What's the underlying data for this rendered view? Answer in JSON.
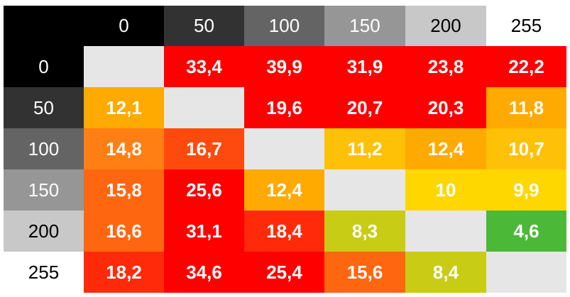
{
  "chart_data": {
    "type": "heatmap",
    "x_labels": [
      "0",
      "50",
      "100",
      "150",
      "200",
      "255"
    ],
    "y_labels": [
      "0",
      "50",
      "100",
      "150",
      "200",
      "255"
    ],
    "header_colors": [
      "#000000",
      "#323232",
      "#646464",
      "#969696",
      "#c8c8c8",
      "#ffffff"
    ],
    "header_text_colors": [
      "#ffffff",
      "#ffffff",
      "#ffffff",
      "#ffffff",
      "#000000",
      "#000000"
    ],
    "values": [
      [
        null,
        "33,4",
        "39,9",
        "31,9",
        "23,8",
        "22,2"
      ],
      [
        "12,1",
        null,
        "19,6",
        "20,7",
        "20,3",
        "11,8"
      ],
      [
        "14,8",
        "16,7",
        null,
        "11,2",
        "12,4",
        "10,7"
      ],
      [
        "15,8",
        "25,6",
        "12,4",
        null,
        "10",
        "9,9"
      ],
      [
        "16,6",
        "31,1",
        "18,4",
        "8,3",
        null,
        "4,6"
      ],
      [
        "18,2",
        "34,6",
        "25,4",
        "15,6",
        "8,4",
        null
      ]
    ],
    "cell_colors": [
      [
        "#e6e6e6",
        "#ff0000",
        "#ff0000",
        "#ff0000",
        "#ff0000",
        "#ff0000"
      ],
      [
        "#ffaa00",
        "#e6e6e6",
        "#ff0000",
        "#ff0000",
        "#ff0000",
        "#ffaa00"
      ],
      [
        "#ff7f14",
        "#ff4a0e",
        "#e6e6e6",
        "#ffc107",
        "#ffaa00",
        "#ffc107"
      ],
      [
        "#ff6610",
        "#ff0000",
        "#ffaa00",
        "#e6e6e6",
        "#ffd700",
        "#ffd700"
      ],
      [
        "#ff6610",
        "#ff0000",
        "#ff2a0a",
        "#c8cc14",
        "#e6e6e6",
        "#4cb838"
      ],
      [
        "#ff2a0a",
        "#ff0000",
        "#ff0000",
        "#ff6610",
        "#c8cc14",
        "#e6e6e6"
      ]
    ],
    "diagonal_color": "#e6e6e6"
  }
}
